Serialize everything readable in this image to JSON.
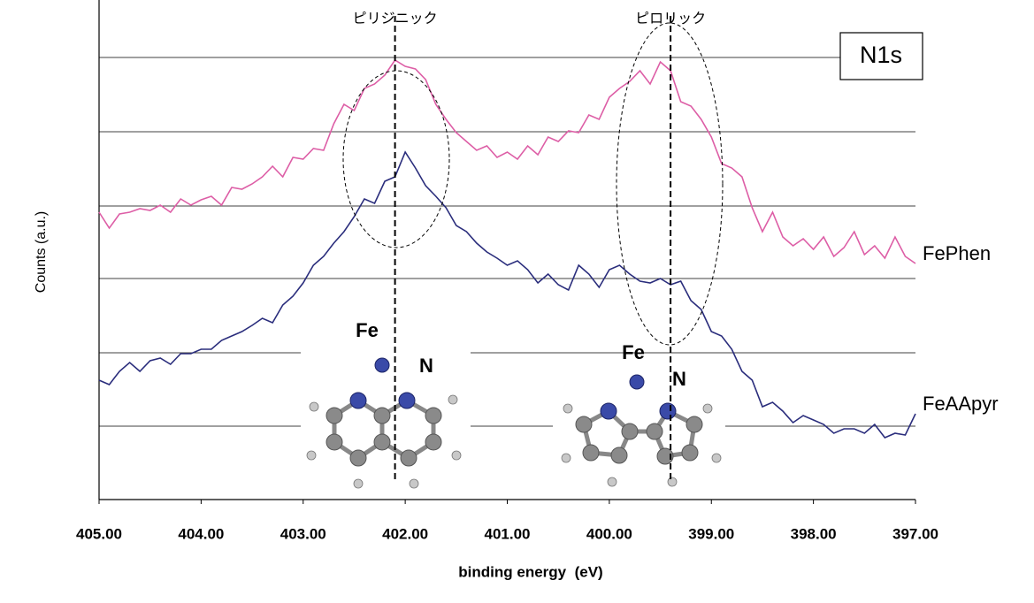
{
  "chart_data": {
    "type": "line",
    "y_label": "Counts (a.u.)",
    "x_label": "binding energy  (eV)",
    "badge": "N1s",
    "xlim": [
      405,
      397
    ],
    "xticks": [
      {
        "value": 405,
        "label": "405.00"
      },
      {
        "value": 404,
        "label": "404.00"
      },
      {
        "value": 403,
        "label": "403.00"
      },
      {
        "value": 402,
        "label": "402.00"
      },
      {
        "value": 401,
        "label": "401.00"
      },
      {
        "value": 400,
        "label": "400.00"
      },
      {
        "value": 399,
        "label": "399.00"
      },
      {
        "value": 398,
        "label": "398.00"
      },
      {
        "value": 397,
        "label": "397.00"
      }
    ],
    "ylim": [
      0,
      565
    ],
    "yticks": [
      83,
      166,
      250,
      332,
      416,
      500
    ],
    "ytick_labels": false,
    "grid": true,
    "x": [
      405.0,
      404.9,
      404.8,
      404.7,
      404.6,
      404.5,
      404.4,
      404.3,
      404.2,
      404.1,
      404.0,
      403.9,
      403.8,
      403.7,
      403.6,
      403.5,
      403.4,
      403.3,
      403.2,
      403.1,
      403.0,
      402.9,
      402.8,
      402.7,
      402.6,
      402.5,
      402.4,
      402.3,
      402.2,
      402.1,
      402.0,
      401.9,
      401.8,
      401.7,
      401.6,
      401.5,
      401.4,
      401.3,
      401.2,
      401.1,
      401.0,
      400.9,
      400.8,
      400.7,
      400.6,
      400.5,
      400.4,
      400.3,
      400.2,
      400.1,
      400.0,
      399.9,
      399.8,
      399.7,
      399.6,
      399.5,
      399.4,
      399.3,
      399.2,
      399.1,
      399.0,
      398.9,
      398.8,
      398.7,
      398.6,
      398.5,
      398.4,
      398.3,
      398.2,
      398.1,
      398.0,
      397.9,
      397.8,
      397.7,
      397.6,
      397.5,
      397.4,
      397.3,
      397.2,
      397.1,
      397.0
    ],
    "series": [
      {
        "name": "FePhen",
        "color": "#dd5ea6",
        "values": [
          325,
          307,
          323,
          325,
          329,
          327,
          333,
          325,
          340,
          333,
          339,
          343,
          333,
          353,
          351,
          357,
          365,
          377,
          365,
          387,
          385,
          397,
          395,
          425,
          447,
          440,
          465,
          470,
          480,
          497,
          490,
          487,
          475,
          447,
          430,
          415,
          405,
          395,
          400,
          387,
          393,
          385,
          400,
          390,
          410,
          405,
          417,
          415,
          435,
          430,
          455,
          465,
          473,
          485,
          470,
          495,
          485,
          450,
          445,
          430,
          410,
          380,
          375,
          365,
          330,
          303,
          325,
          297,
          287,
          295,
          283,
          297,
          275,
          285,
          303,
          277,
          287,
          273,
          297,
          275,
          267
        ]
      },
      {
        "name": "FeAApyr",
        "color": "#2a2d7c",
        "values": [
          135,
          130,
          145,
          155,
          145,
          157,
          160,
          153,
          165,
          165,
          170,
          170,
          180,
          185,
          190,
          197,
          205,
          200,
          220,
          230,
          245,
          265,
          275,
          290,
          303,
          320,
          340,
          335,
          360,
          365,
          393,
          375,
          355,
          343,
          330,
          310,
          303,
          290,
          280,
          273,
          265,
          270,
          260,
          245,
          255,
          243,
          237,
          265,
          255,
          240,
          260,
          265,
          255,
          247,
          245,
          250,
          243,
          247,
          225,
          215,
          190,
          185,
          170,
          145,
          135,
          105,
          110,
          100,
          87,
          95,
          90,
          85,
          75,
          80,
          80,
          75,
          85,
          70,
          75,
          73,
          97
        ]
      }
    ],
    "markers": [
      {
        "x": 402.1,
        "label": "ピリジニック"
      },
      {
        "x": 399.4,
        "label": "ピロリック"
      }
    ],
    "insets": [
      {
        "metal": "Fe",
        "atom": "N"
      },
      {
        "metal": "Fe",
        "atom": "N"
      }
    ]
  }
}
